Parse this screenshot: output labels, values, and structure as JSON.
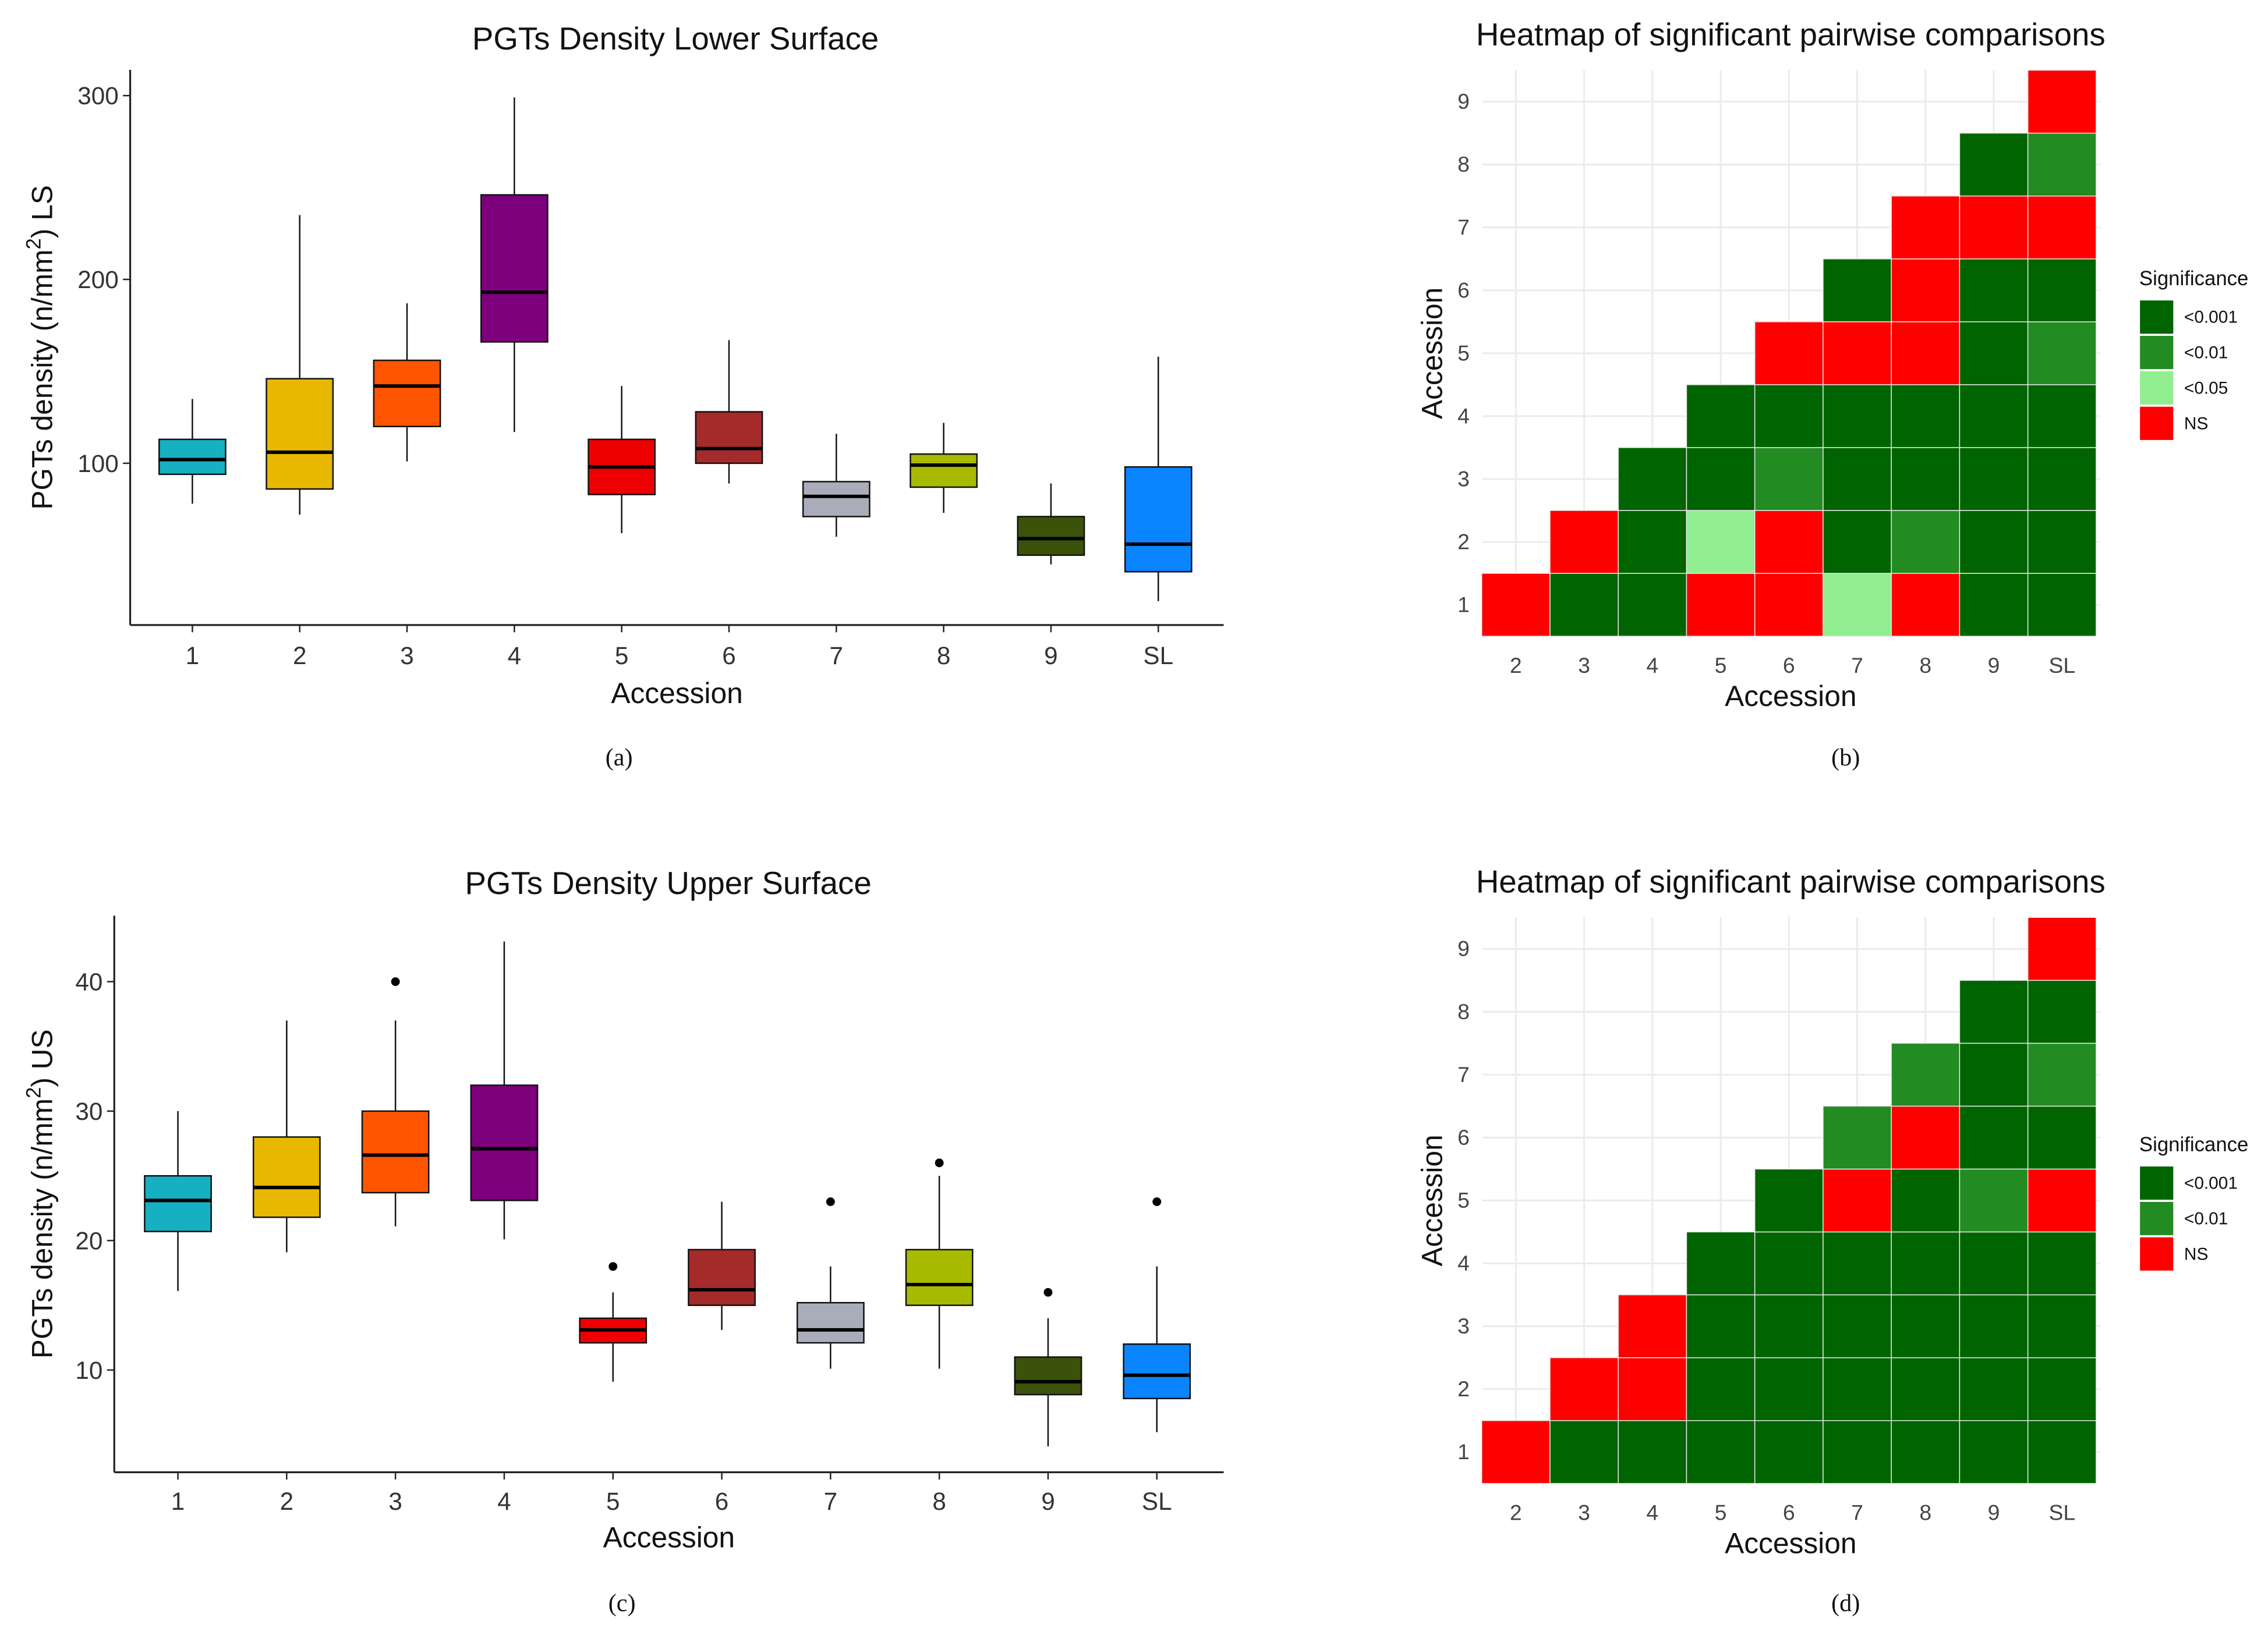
{
  "chart_data": [
    {
      "type": "boxplot",
      "panel_label": "(a)",
      "title": "PGTs Density Lower Surface",
      "xlabel": "Accession",
      "ylabel_pre": "PGTs density (n/mm",
      "ylabel_sup": "2",
      "ylabel_post": ") LS",
      "ylim": [
        12,
        314
      ],
      "yticks": [
        100,
        200,
        300
      ],
      "categories": [
        "1",
        "2",
        "3",
        "4",
        "5",
        "6",
        "7",
        "8",
        "9",
        "SL"
      ],
      "colors": [
        "#17AFC2",
        "#E6B800",
        "#FF5500",
        "#7D007D",
        "#EE0000",
        "#A52A2A",
        "#A9ADBA",
        "#A8BA00",
        "#3B520A",
        "#0A84FF"
      ],
      "boxes": [
        {
          "low": 78,
          "q1": 94,
          "median": 102,
          "q3": 113,
          "high": 135,
          "outliers": []
        },
        {
          "low": 72,
          "q1": 86,
          "median": 106,
          "q3": 146,
          "high": 235,
          "outliers": []
        },
        {
          "low": 101,
          "q1": 120,
          "median": 142,
          "q3": 156,
          "high": 187,
          "outliers": []
        },
        {
          "low": 117,
          "q1": 166,
          "median": 193,
          "q3": 246,
          "high": 299,
          "outliers": []
        },
        {
          "low": 62,
          "q1": 83,
          "median": 98,
          "q3": 113,
          "high": 142,
          "outliers": []
        },
        {
          "low": 89,
          "q1": 100,
          "median": 108,
          "q3": 128,
          "high": 167,
          "outliers": []
        },
        {
          "low": 60,
          "q1": 71,
          "median": 82,
          "q3": 90,
          "high": 116,
          "outliers": []
        },
        {
          "low": 73,
          "q1": 87,
          "median": 99,
          "q3": 105,
          "high": 122,
          "outliers": []
        },
        {
          "low": 45,
          "q1": 50,
          "median": 59,
          "q3": 71,
          "high": 89,
          "outliers": []
        },
        {
          "low": 25,
          "q1": 41,
          "median": 56,
          "q3": 98,
          "high": 158,
          "outliers": []
        }
      ]
    },
    {
      "type": "heatmap",
      "panel_label": "(b)",
      "title": "Heatmap of significant pairwise comparisons",
      "xlabel": "Accession",
      "ylabel": "Accession",
      "x_categories": [
        "2",
        "3",
        "4",
        "5",
        "6",
        "7",
        "8",
        "9",
        "SL"
      ],
      "y_categories": [
        "1",
        "2",
        "3",
        "4",
        "5",
        "6",
        "7",
        "8",
        "9"
      ],
      "legend_title": "Significance",
      "legend": [
        {
          "label": "<0.001",
          "color": "#006400"
        },
        {
          "label": "<0.01",
          "color": "#228B22"
        },
        {
          "label": "<0.05",
          "color": "#90EE90"
        },
        {
          "label": "NS",
          "color": "#FF0000"
        }
      ],
      "cells": {
        "1": [
          "NS",
          "<0.001",
          "<0.001",
          "NS",
          "NS",
          "<0.05",
          "NS",
          "<0.001",
          "<0.001"
        ],
        "2": [
          null,
          "NS",
          "<0.001",
          "<0.05",
          "NS",
          "<0.001",
          "<0.01",
          "<0.001",
          "<0.001"
        ],
        "3": [
          null,
          null,
          "<0.001",
          "<0.001",
          "<0.01",
          "<0.001",
          "<0.001",
          "<0.001",
          "<0.001"
        ],
        "4": [
          null,
          null,
          null,
          "<0.001",
          "<0.001",
          "<0.001",
          "<0.001",
          "<0.001",
          "<0.001"
        ],
        "5": [
          null,
          null,
          null,
          null,
          "NS",
          "NS",
          "NS",
          "<0.001",
          "<0.01"
        ],
        "6": [
          null,
          null,
          null,
          null,
          null,
          "<0.001",
          "NS",
          "<0.001",
          "<0.001"
        ],
        "7": [
          null,
          null,
          null,
          null,
          null,
          null,
          "NS",
          "NS",
          "NS"
        ],
        "8": [
          null,
          null,
          null,
          null,
          null,
          null,
          null,
          "<0.001",
          "<0.01"
        ],
        "9": [
          null,
          null,
          null,
          null,
          null,
          null,
          null,
          null,
          "NS"
        ]
      }
    },
    {
      "type": "boxplot",
      "panel_label": "(c)",
      "title": "PGTs Density Upper Surface",
      "xlabel": "Accession",
      "ylabel_pre": "PGTs density (n/mm",
      "ylabel_sup": "2",
      "ylabel_post": ") US",
      "ylim": [
        2.1,
        45.1
      ],
      "yticks": [
        10,
        20,
        30,
        40
      ],
      "categories": [
        "1",
        "2",
        "3",
        "4",
        "5",
        "6",
        "7",
        "8",
        "9",
        "SL"
      ],
      "colors": [
        "#17AFC2",
        "#E6B800",
        "#FF5500",
        "#7D007D",
        "#EE0000",
        "#A52A2A",
        "#A9ADBA",
        "#A8BA00",
        "#3B520A",
        "#0A84FF"
      ],
      "boxes": [
        {
          "low": 16.1,
          "q1": 20.7,
          "median": 23.1,
          "q3": 25,
          "high": 30,
          "outliers": []
        },
        {
          "low": 19.1,
          "q1": 21.8,
          "median": 24.1,
          "q3": 28,
          "high": 37,
          "outliers": []
        },
        {
          "low": 21.1,
          "q1": 23.7,
          "median": 26.6,
          "q3": 30,
          "high": 37,
          "outliers": [
            40
          ]
        },
        {
          "low": 20.1,
          "q1": 23.1,
          "median": 27.1,
          "q3": 32,
          "high": 43.1,
          "outliers": []
        },
        {
          "low": 9.1,
          "q1": 12.1,
          "median": 13.1,
          "q3": 14,
          "high": 16,
          "outliers": [
            18
          ]
        },
        {
          "low": 13.1,
          "q1": 15,
          "median": 16.2,
          "q3": 19.3,
          "high": 23,
          "outliers": []
        },
        {
          "low": 10.1,
          "q1": 12.1,
          "median": 13.1,
          "q3": 15.2,
          "high": 18,
          "outliers": [
            23
          ]
        },
        {
          "low": 10.1,
          "q1": 15,
          "median": 16.6,
          "q3": 19.3,
          "high": 25,
          "outliers": [
            26
          ]
        },
        {
          "low": 4.1,
          "q1": 8.1,
          "median": 9.1,
          "q3": 11,
          "high": 14,
          "outliers": [
            16
          ]
        },
        {
          "low": 5.2,
          "q1": 7.8,
          "median": 9.6,
          "q3": 12,
          "high": 18,
          "outliers": [
            23
          ]
        }
      ]
    },
    {
      "type": "heatmap",
      "panel_label": "(d)",
      "title": "Heatmap of significant pairwise comparisons",
      "xlabel": "Accession",
      "ylabel": "Accession",
      "x_categories": [
        "2",
        "3",
        "4",
        "5",
        "6",
        "7",
        "8",
        "9",
        "SL"
      ],
      "y_categories": [
        "1",
        "2",
        "3",
        "4",
        "5",
        "6",
        "7",
        "8",
        "9"
      ],
      "legend_title": "Significance",
      "legend": [
        {
          "label": "<0.001",
          "color": "#006400"
        },
        {
          "label": "<0.01",
          "color": "#228B22"
        },
        {
          "label": "NS",
          "color": "#FF0000"
        }
      ],
      "cells": {
        "1": [
          "NS",
          "<0.001",
          "<0.001",
          "<0.001",
          "<0.001",
          "<0.001",
          "<0.001",
          "<0.001",
          "<0.001"
        ],
        "2": [
          null,
          "NS",
          "NS",
          "<0.001",
          "<0.001",
          "<0.001",
          "<0.001",
          "<0.001",
          "<0.001"
        ],
        "3": [
          null,
          null,
          "NS",
          "<0.001",
          "<0.001",
          "<0.001",
          "<0.001",
          "<0.001",
          "<0.001"
        ],
        "4": [
          null,
          null,
          null,
          "<0.001",
          "<0.001",
          "<0.001",
          "<0.001",
          "<0.001",
          "<0.001"
        ],
        "5": [
          null,
          null,
          null,
          null,
          "<0.001",
          "NS",
          "<0.001",
          "<0.01",
          "NS"
        ],
        "6": [
          null,
          null,
          null,
          null,
          null,
          "<0.01",
          "NS",
          "<0.001",
          "<0.001"
        ],
        "7": [
          null,
          null,
          null,
          null,
          null,
          null,
          "<0.01",
          "<0.001",
          "<0.01"
        ],
        "8": [
          null,
          null,
          null,
          null,
          null,
          null,
          null,
          "<0.001",
          "<0.001"
        ],
        "9": [
          null,
          null,
          null,
          null,
          null,
          null,
          null,
          null,
          "NS"
        ]
      }
    }
  ]
}
